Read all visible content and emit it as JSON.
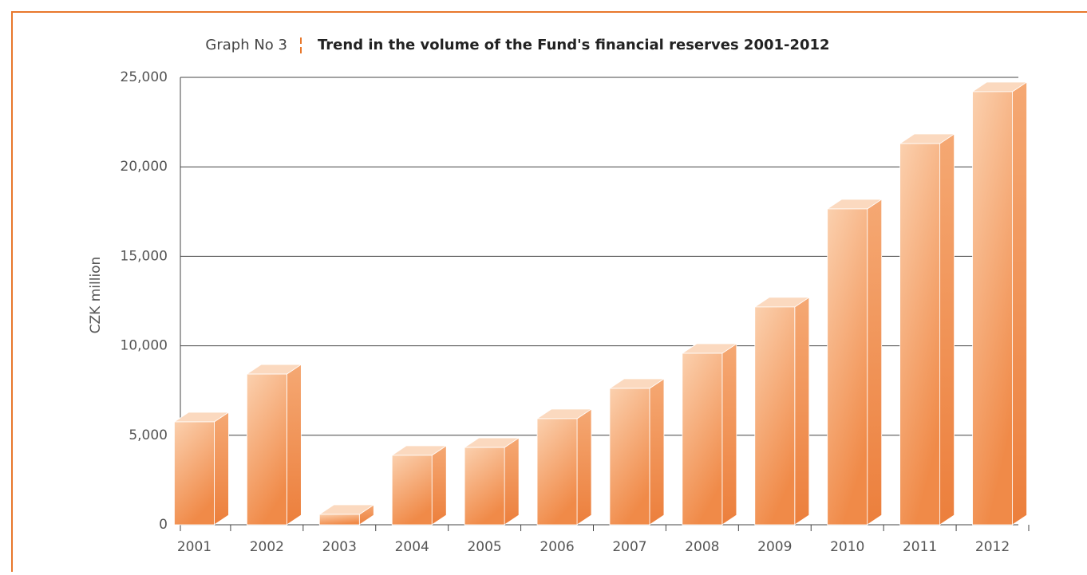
{
  "chart_data": {
    "type": "bar3d",
    "title_prefix": "Graph No 3",
    "title": "Trend in the volume of the Fund's financial reserves 2001-2012",
    "ylabel": "CZK million",
    "categories": [
      "2001",
      "2002",
      "2003",
      "2004",
      "2005",
      "2006",
      "2007",
      "2008",
      "2009",
      "2010",
      "2011",
      "2012"
    ],
    "values": [
      5750,
      8420,
      580,
      3880,
      4320,
      5930,
      7620,
      9580,
      12170,
      17650,
      21300,
      24200
    ],
    "color": "#f08a48",
    "ylim": [
      0,
      25000
    ],
    "yticks": [
      0,
      {
        "value": 5000,
        "label": "5,000"
      },
      {
        "value": 10000,
        "label": "10,000"
      },
      {
        "value": 15000,
        "label": "15,000"
      },
      {
        "value": 20000,
        "label": "20,000"
      },
      {
        "value": 25000,
        "label": "25,000"
      }
    ],
    "grid": true
  }
}
